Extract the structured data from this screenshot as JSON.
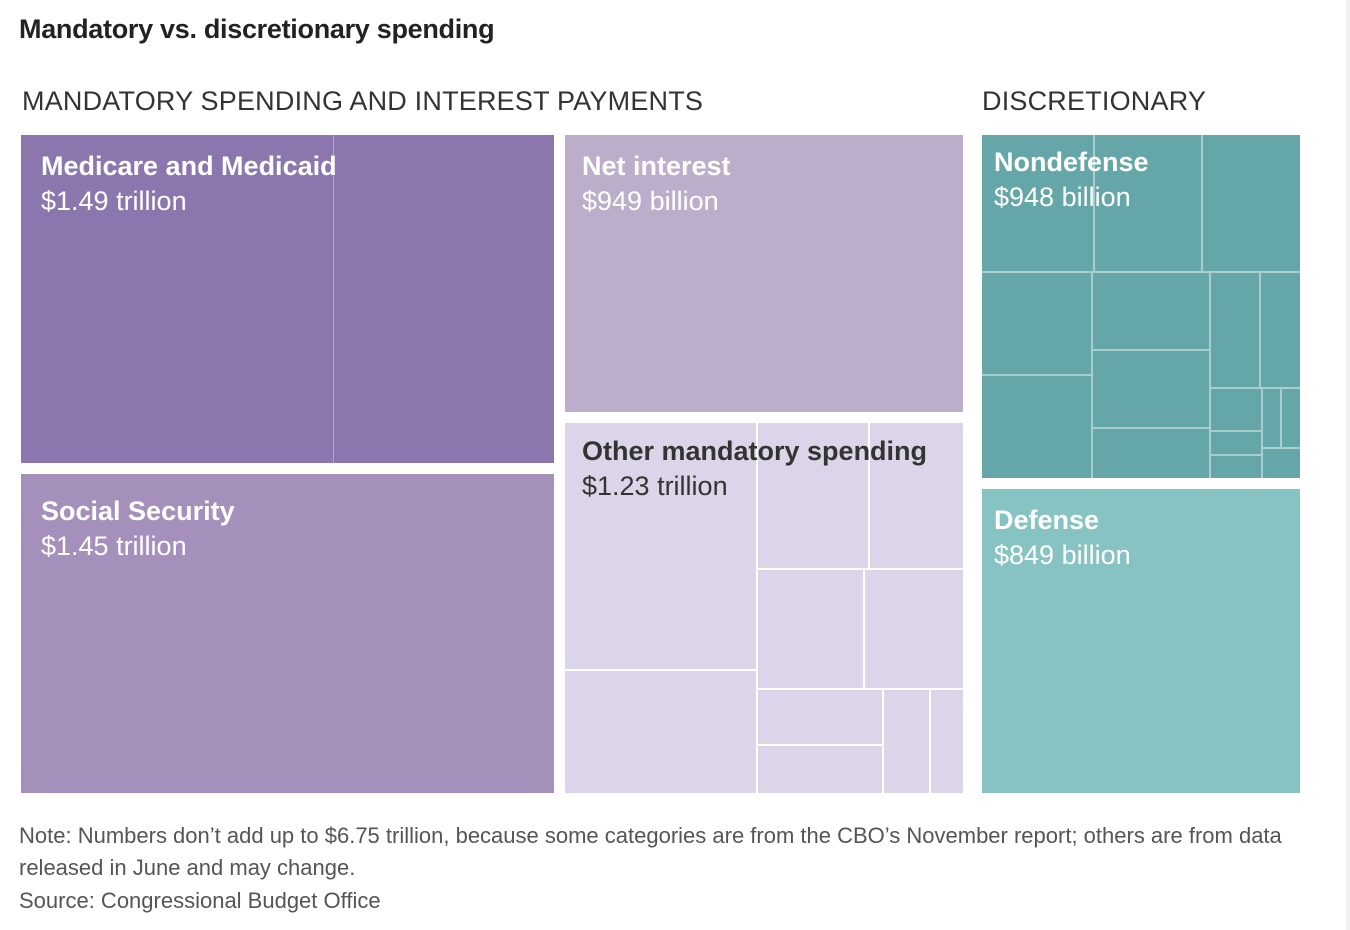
{
  "title": "Mandatory vs. discretionary spending",
  "groups": {
    "mandatory": "MANDATORY SPENDING AND INTEREST PAYMENTS",
    "discretionary": "DISCRETIONARY"
  },
  "colors": {
    "medicare": "#8b76ad",
    "social_security": "#a58fbb",
    "net_interest": "#bcadcb",
    "other_mandatory": "#dcd5e9",
    "nondefense": "#65a7a8",
    "defense": "#86c3c2"
  },
  "chart_data": {
    "type": "treemap",
    "groups": [
      {
        "name": "MANDATORY SPENDING AND INTEREST PAYMENTS",
        "items": [
          {
            "name": "Medicare and Medicaid",
            "value_label": "$1.49 trillion",
            "value": 1490
          },
          {
            "name": "Social Security",
            "value_label": "$1.45 trillion",
            "value": 1450
          },
          {
            "name": "Net interest",
            "value_label": "$949 billion",
            "value": 949
          },
          {
            "name": "Other mandatory spending",
            "value_label": "$1.23 trillion",
            "value": 1230
          }
        ]
      },
      {
        "name": "DISCRETIONARY",
        "items": [
          {
            "name": "Nondefense",
            "value_label": "$948 billion",
            "value": 948
          },
          {
            "name": "Defense",
            "value_label": "$849 billion",
            "value": 849
          }
        ]
      }
    ],
    "units": "billion dollars"
  },
  "note": "Note: Numbers don’t add up to $6.75 trillion, because some categories are from the CBO’s November report; others are from data released in June and may change.",
  "source": "Source: Congressional Budget Office"
}
